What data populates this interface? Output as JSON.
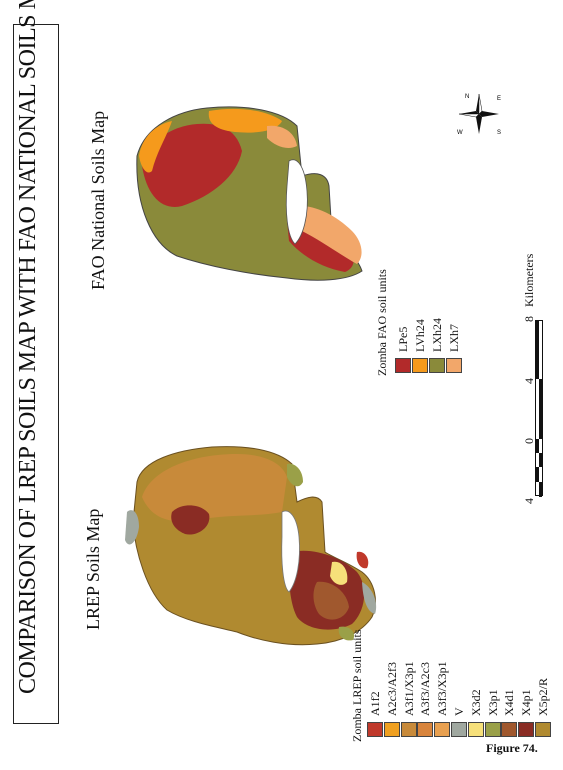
{
  "title": "COMPARISON OF LREP SOILS MAP WITH FAO NATIONAL SOILS MAP",
  "maps": {
    "lrep_title": "LREP Soils Map",
    "fao_title": "FAO National Soils Map"
  },
  "lrep_legend": {
    "heading": "Zomba LREP soil units",
    "items": [
      {
        "label": "A1f2",
        "color": "#c0392b"
      },
      {
        "label": "A2c3/A2f3",
        "color": "#f0a020"
      },
      {
        "label": "A3f1/X3p1",
        "color": "#c88a3a"
      },
      {
        "label": "A3f3/A2c3",
        "color": "#d8843c"
      },
      {
        "label": "A3f3/X3p1",
        "color": "#e8a050"
      },
      {
        "label": "V",
        "color": "#a0a8a0"
      },
      {
        "label": "X3d2",
        "color": "#f6e07a"
      },
      {
        "label": "X3p1",
        "color": "#9aa048"
      },
      {
        "label": "X4d1",
        "color": "#a0582e"
      },
      {
        "label": "X4p1",
        "color": "#8a2c24"
      },
      {
        "label": "X5p2/R",
        "color": "#b08a30"
      }
    ]
  },
  "fao_legend": {
    "heading": "Zomba FAO soil units",
    "items": [
      {
        "label": "LPe5",
        "color": "#b22a2a"
      },
      {
        "label": "LVh24",
        "color": "#f59a1c"
      },
      {
        "label": "LXh24",
        "color": "#8a8a3a"
      },
      {
        "label": "LXh7",
        "color": "#f2a76a"
      }
    ]
  },
  "scale": {
    "ticks": [
      "4",
      "0",
      "4",
      "8"
    ],
    "unit": "Kilometers"
  },
  "compass": {
    "n": "N",
    "e": "E",
    "s": "S",
    "w": "W"
  },
  "caption": "Figure 74."
}
